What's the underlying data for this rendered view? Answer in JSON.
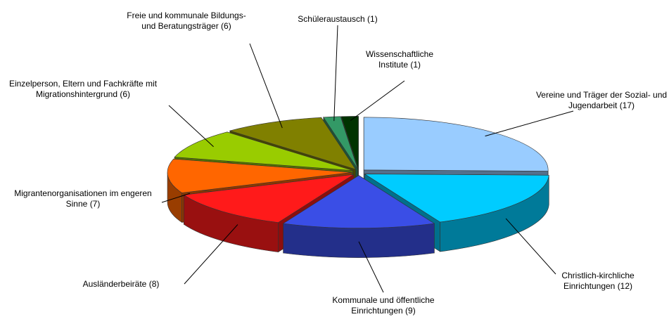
{
  "chart_data": {
    "type": "pie3d",
    "categories": [
      "Vereine und Träger der Sozial- und Jugendarbeit",
      "Christlich-kirchliche Einrichtungen",
      "Kommunale und öffentliche Einrichtungen",
      "Ausländerbeiräte",
      "Migrantenorganisationen im engeren Sinne",
      "Einzelperson, Eltern und Fachkräfte mit Migrationshintergrund",
      "Freie und kommunale Bildungs- und Beratungsträger",
      "Schüleraustausch",
      "Wissenschaftliche Institute"
    ],
    "values": [
      17,
      12,
      9,
      8,
      7,
      6,
      6,
      1,
      1
    ],
    "value_labels": [
      "(17)",
      "(12)",
      "(9)",
      "(8)",
      "(7)",
      "(6)",
      "(6)",
      "(1)",
      "(1)"
    ],
    "colors": [
      "#99ccff",
      "#00ccff",
      "#3a4ee6",
      "#ff1a1a",
      "#ff6600",
      "#99cc00",
      "#808000",
      "#339966",
      "#003300"
    ]
  }
}
